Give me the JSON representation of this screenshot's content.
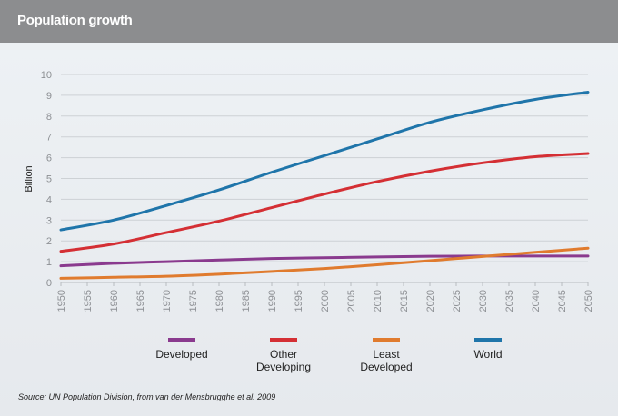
{
  "header": {
    "title": "Population growth"
  },
  "source": "Source: UN Population Division, from van der Mensbrugghe et al. 2009",
  "chart_data": {
    "type": "line",
    "title": "Population growth",
    "xlabel": "",
    "ylabel": "Billion",
    "xlim": [
      1950,
      2050
    ],
    "ylim": [
      0,
      10
    ],
    "yticks": [
      "0",
      "1",
      "2",
      "3",
      "4",
      "5",
      "6",
      "7",
      "8",
      "9",
      "10"
    ],
    "xticks": [
      "1950",
      "1955",
      "1960",
      "1965",
      "1970",
      "1975",
      "1980",
      "1985",
      "1990",
      "1995",
      "2000",
      "2005",
      "2010",
      "2015",
      "2020",
      "2025",
      "2030",
      "2035",
      "2040",
      "2045",
      "2050"
    ],
    "grid": true,
    "legend": "bottom",
    "x": [
      1950,
      1960,
      1970,
      1980,
      1990,
      2000,
      2010,
      2020,
      2030,
      2040,
      2050
    ],
    "series": [
      {
        "name": "Developed",
        "color": "#8a3a8e",
        "values": [
          0.8,
          0.92,
          1.0,
          1.08,
          1.15,
          1.19,
          1.23,
          1.26,
          1.27,
          1.27,
          1.27
        ]
      },
      {
        "name": "Other Developing",
        "color": "#d42f34",
        "values": [
          1.5,
          1.85,
          2.4,
          2.95,
          3.6,
          4.25,
          4.85,
          5.35,
          5.75,
          6.05,
          6.2
        ]
      },
      {
        "name": "Least Developed",
        "color": "#e07b2e",
        "values": [
          0.2,
          0.25,
          0.3,
          0.4,
          0.53,
          0.67,
          0.85,
          1.05,
          1.25,
          1.45,
          1.65
        ]
      },
      {
        "name": "World",
        "color": "#1f75aa",
        "values": [
          2.53,
          3.0,
          3.7,
          4.45,
          5.3,
          6.1,
          6.9,
          7.7,
          8.3,
          8.8,
          9.15
        ]
      }
    ],
    "legend_labels": [
      [
        "Developed"
      ],
      [
        "Other",
        "Developing"
      ],
      [
        "Least",
        "Developed"
      ],
      [
        "World"
      ]
    ]
  }
}
